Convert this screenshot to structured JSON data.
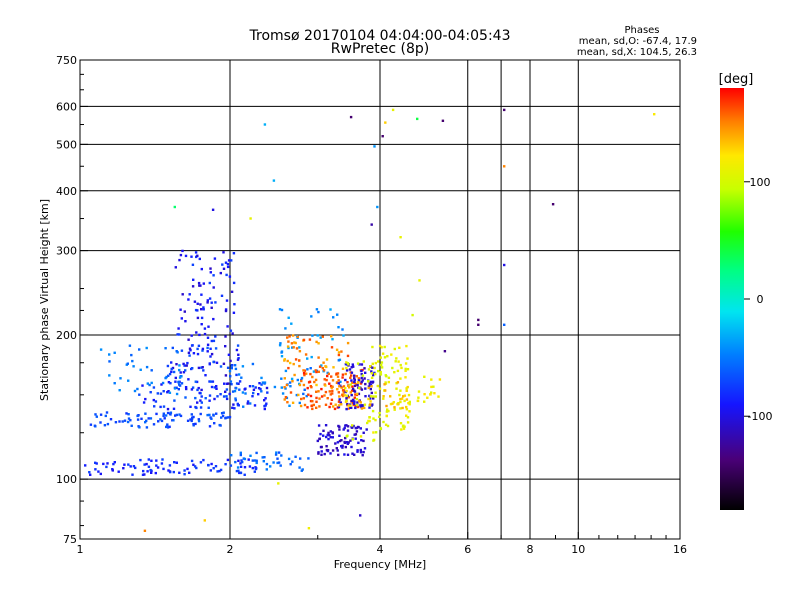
{
  "chart_data": {
    "type": "scatter",
    "title": "Tromsø 20170104 04:04:00-04:05:43",
    "subtitle": "RwPretec (8p)",
    "xlabel": "Frequency [MHz]",
    "ylabel": "Stationary phase Virtual Height [km]",
    "x_scale": "log2",
    "y_scale": "log",
    "xlim": [
      1,
      16
    ],
    "ylim": [
      75,
      750
    ],
    "x_ticks": [
      1,
      2,
      4,
      6,
      8,
      10,
      16
    ],
    "x_tick_labels": [
      "1",
      "2",
      "4",
      "6",
      "8",
      "10",
      "16"
    ],
    "x_grid": [
      2,
      4,
      6,
      7,
      8,
      10
    ],
    "y_ticks": [
      75,
      100,
      200,
      300,
      400,
      500,
      600,
      750
    ],
    "y_tick_labels": [
      "75",
      "100",
      "200",
      "300",
      "400",
      "500",
      "600",
      "750"
    ],
    "y_grid": [
      100,
      200,
      300,
      400,
      500,
      600
    ],
    "grid": true,
    "legend": {
      "title": "Phases",
      "lines": [
        "mean, sd,O: -67.4, 17.9",
        "mean, sd,X: 104.5, 26.3"
      ],
      "placement": "top-right"
    },
    "colorbar": {
      "label": "[deg]",
      "range": [
        -180,
        180
      ],
      "ticks": [
        100,
        0,
        -100
      ],
      "tick_labels": [
        "100",
        "0",
        "-100"
      ]
    },
    "series": [
      {
        "clusters": [
          {
            "f0": 1.02,
            "f1": 2.3,
            "h0": 102,
            "h1": 110,
            "ph0": -95,
            "ph1": -70,
            "n": 90
          },
          {
            "f0": 1.05,
            "f1": 2.0,
            "h0": 128,
            "h1": 138,
            "ph0": -80,
            "ph1": -55,
            "n": 90
          },
          {
            "f0": 1.3,
            "f1": 2.4,
            "h0": 140,
            "h1": 160,
            "ph0": -100,
            "ph1": -60,
            "n": 90
          },
          {
            "f0": 1.5,
            "f1": 2.1,
            "h0": 150,
            "h1": 190,
            "ph0": -110,
            "ph1": -60,
            "n": 90
          },
          {
            "f0": 1.55,
            "f1": 2.05,
            "h0": 190,
            "h1": 300,
            "ph0": -110,
            "ph1": -70,
            "n": 90
          },
          {
            "f0": 1.1,
            "f1": 1.6,
            "h0": 150,
            "h1": 190,
            "ph0": -60,
            "ph1": -40,
            "n": 40
          },
          {
            "f0": 2.0,
            "f1": 2.9,
            "h0": 104,
            "h1": 114,
            "ph0": -70,
            "ph1": -45,
            "n": 40
          },
          {
            "f0": 2.0,
            "f1": 3.0,
            "h0": 140,
            "h1": 175,
            "ph0": -60,
            "ph1": -40,
            "n": 40
          },
          {
            "f0": 2.5,
            "f1": 3.4,
            "h0": 155,
            "h1": 230,
            "ph0": -50,
            "ph1": -30,
            "n": 40
          },
          {
            "f0": 2.55,
            "f1": 3.5,
            "h0": 140,
            "h1": 200,
            "ph0": 130,
            "ph1": 165,
            "n": 90
          },
          {
            "f0": 2.8,
            "f1": 3.7,
            "h0": 140,
            "h1": 170,
            "ph0": 150,
            "ph1": 175,
            "n": 90
          },
          {
            "f0": 3.0,
            "f1": 3.8,
            "h0": 112,
            "h1": 130,
            "ph0": -120,
            "ph1": -95,
            "n": 90
          },
          {
            "f0": 3.3,
            "f1": 3.9,
            "h0": 140,
            "h1": 175,
            "ph0": -120,
            "ph1": -95,
            "n": 90
          },
          {
            "f0": 3.4,
            "f1": 4.2,
            "h0": 120,
            "h1": 180,
            "ph0": 95,
            "ph1": 115,
            "n": 40
          },
          {
            "f0": 3.8,
            "f1": 4.6,
            "h0": 125,
            "h1": 190,
            "ph0": 100,
            "ph1": 120,
            "n": 90
          },
          {
            "f0": 3.3,
            "f1": 4.6,
            "h0": 140,
            "h1": 160,
            "ph0": 125,
            "ph1": 145,
            "n": 40
          },
          {
            "f0": 4.5,
            "f1": 5.3,
            "h0": 145,
            "h1": 165,
            "ph0": 100,
            "ph1": 125,
            "n": 20
          }
        ],
        "points": [
          [
            1.35,
            78,
            150
          ],
          [
            1.78,
            82,
            130
          ],
          [
            2.5,
            98,
            110
          ],
          [
            2.88,
            79,
            115
          ],
          [
            3.65,
            84,
            -110
          ],
          [
            1.55,
            370,
            30
          ],
          [
            1.85,
            365,
            -100
          ],
          [
            2.2,
            350,
            110
          ],
          [
            2.35,
            550,
            -30
          ],
          [
            2.45,
            420,
            -30
          ],
          [
            3.5,
            570,
            -140
          ],
          [
            3.9,
            495,
            -40
          ],
          [
            3.95,
            370,
            -40
          ],
          [
            3.85,
            340,
            -120
          ],
          [
            4.05,
            520,
            -140
          ],
          [
            4.1,
            555,
            130
          ],
          [
            4.25,
            590,
            110
          ],
          [
            4.4,
            320,
            110
          ],
          [
            4.75,
            565,
            40
          ],
          [
            5.35,
            560,
            -140
          ],
          [
            6.3,
            210,
            -140
          ],
          [
            6.3,
            215,
            -140
          ],
          [
            7.1,
            450,
            150
          ],
          [
            7.1,
            590,
            -140
          ],
          [
            7.1,
            280,
            -100
          ],
          [
            7.1,
            210,
            -60
          ],
          [
            8.9,
            375,
            -140
          ],
          [
            14.2,
            578,
            120
          ],
          [
            4.65,
            220,
            100
          ],
          [
            5.4,
            185,
            -130
          ],
          [
            4.8,
            260,
            110
          ]
        ]
      }
    ]
  }
}
